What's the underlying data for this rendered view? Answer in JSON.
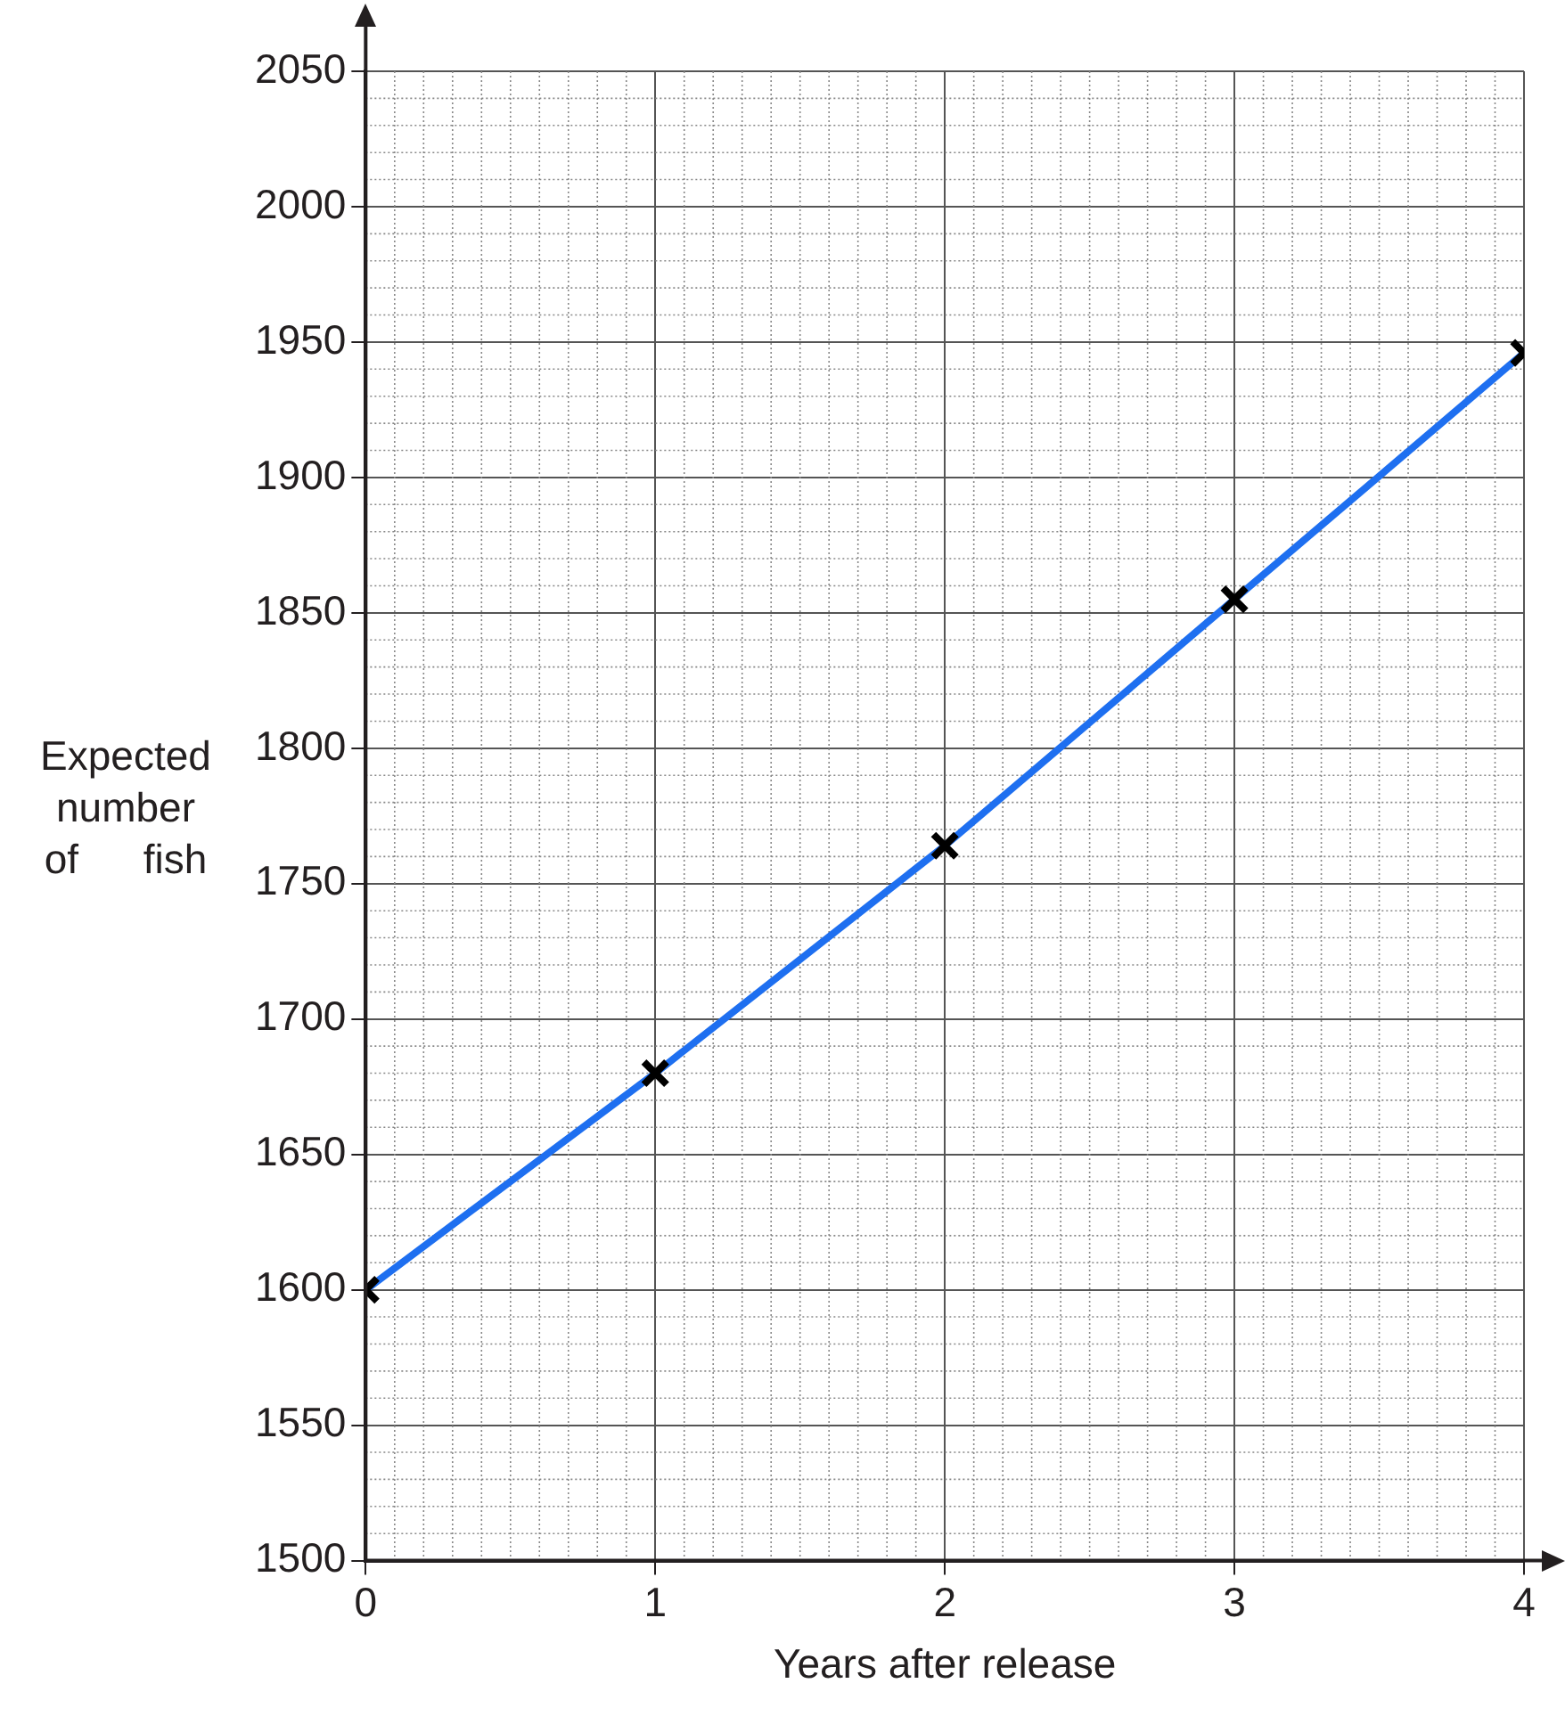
{
  "chart_data": {
    "type": "line",
    "xlabel": "Years after release",
    "ylabel": "Expected number of fish",
    "x": [
      0,
      1,
      2,
      3,
      4
    ],
    "series": [
      {
        "type": "line",
        "color": "#1e6ff0",
        "values": [
          1600,
          1680,
          1764,
          1855,
          1946
        ],
        "marker": "none"
      },
      {
        "type": "scatter",
        "color": "#000000",
        "values": [
          1600,
          1680,
          1764,
          1855,
          1946
        ],
        "marker": "cross"
      }
    ],
    "xlim": [
      0,
      4
    ],
    "xticks": [
      0,
      1,
      2,
      3,
      4
    ],
    "ylim": [
      1500,
      2050
    ],
    "yticks": [
      1500,
      1550,
      1600,
      1650,
      1700,
      1750,
      1800,
      1850,
      1900,
      1950,
      2000,
      2050
    ],
    "grid": true,
    "legend": false
  }
}
